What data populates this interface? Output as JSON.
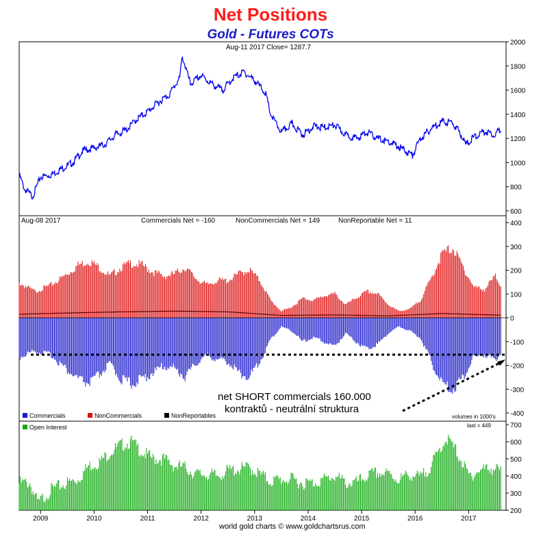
{
  "title": "Net Positions",
  "subtitle": "Gold - Futures COTs",
  "footer": "world gold charts © www.goldchartsrus.com",
  "colors": {
    "gold": "#0000ee",
    "commercials": "#1a1acc",
    "noncommercials": "#dd1111",
    "nonreportables": "#000000",
    "open_interest": "#11aa11"
  },
  "chart_data": [
    {
      "type": "line",
      "name": "price",
      "header": "Aug-11  2017   Close= 1287.7",
      "x_ticks": [
        "2009",
        "2010",
        "2011",
        "2012",
        "2013",
        "2014",
        "2015",
        "2016",
        "2017"
      ],
      "ylim": [
        560,
        2000
      ],
      "y_ticks": [
        600,
        800,
        1000,
        1200,
        1400,
        1600,
        1800,
        2000
      ],
      "series": [
        {
          "x": [
            2008.6,
            2008.7,
            2008.85,
            2009.0,
            2009.2,
            2009.4,
            2009.6,
            2009.8,
            2010.0,
            2010.2,
            2010.4,
            2010.6,
            2010.8,
            2011.0,
            2011.2,
            2011.4,
            2011.6,
            2011.65,
            2011.8,
            2012.0,
            2012.2,
            2012.4,
            2012.6,
            2012.8,
            2013.0,
            2013.2,
            2013.3,
            2013.5,
            2013.7,
            2013.9,
            2014.1,
            2014.3,
            2014.5,
            2014.7,
            2014.9,
            2015.1,
            2015.3,
            2015.5,
            2015.7,
            2015.95,
            2016.1,
            2016.3,
            2016.5,
            2016.7,
            2016.85,
            2016.95,
            2017.1,
            2017.3,
            2017.5,
            2017.6
          ],
          "y": [
            900,
            780,
            720,
            880,
            900,
            950,
            1000,
            1100,
            1120,
            1150,
            1230,
            1270,
            1360,
            1420,
            1500,
            1560,
            1700,
            1880,
            1650,
            1720,
            1650,
            1600,
            1700,
            1750,
            1680,
            1580,
            1400,
            1250,
            1320,
            1230,
            1300,
            1290,
            1310,
            1230,
            1200,
            1250,
            1200,
            1170,
            1130,
            1060,
            1200,
            1280,
            1340,
            1330,
            1240,
            1150,
            1210,
            1260,
            1230,
            1285
          ]
        }
      ]
    },
    {
      "type": "bar",
      "name": "net positions",
      "header_left": "Aug-08  2017",
      "header_values": [
        "Commercials Net = -160",
        "NonCommercials Net = 149",
        "NonReportable Net = 11"
      ],
      "ylim": [
        -400,
        400
      ],
      "y_ticks": [
        -400,
        -300,
        -200,
        -100,
        0,
        100,
        200,
        300,
        400
      ],
      "legend": [
        "Commercials",
        "NonCommercials",
        "NonReportables"
      ],
      "units_note": "volumes in 1000's",
      "series": [
        {
          "name": "Commercials",
          "x": [
            2008.6,
            2008.9,
            2009.2,
            2009.5,
            2009.7,
            2009.9,
            2010.1,
            2010.3,
            2010.5,
            2010.7,
            2010.9,
            2011.1,
            2011.3,
            2011.5,
            2011.7,
            2011.9,
            2012.1,
            2012.3,
            2012.5,
            2012.7,
            2012.9,
            2013.1,
            2013.3,
            2013.5,
            2013.7,
            2013.9,
            2014.1,
            2014.3,
            2014.5,
            2014.7,
            2014.9,
            2015.1,
            2015.3,
            2015.5,
            2015.7,
            2015.9,
            2016.1,
            2016.3,
            2016.5,
            2016.7,
            2016.9,
            2017.1,
            2017.3,
            2017.5,
            2017.6
          ],
          "y": [
            -180,
            -150,
            -170,
            -240,
            -280,
            -300,
            -260,
            -210,
            -280,
            -300,
            -280,
            -250,
            -220,
            -230,
            -270,
            -210,
            -170,
            -190,
            -200,
            -250,
            -270,
            -200,
            -100,
            -40,
            -60,
            -110,
            -90,
            -110,
            -130,
            -70,
            -110,
            -140,
            -120,
            -70,
            -40,
            -60,
            -90,
            -200,
            -300,
            -330,
            -270,
            -180,
            -170,
            -190,
            -160
          ]
        },
        {
          "name": "NonCommercials",
          "x": [
            2008.6,
            2008.9,
            2009.2,
            2009.5,
            2009.7,
            2009.9,
            2010.1,
            2010.3,
            2010.5,
            2010.7,
            2010.9,
            2011.1,
            2011.3,
            2011.5,
            2011.7,
            2011.9,
            2012.1,
            2012.3,
            2012.5,
            2012.7,
            2012.9,
            2013.1,
            2013.3,
            2013.5,
            2013.7,
            2013.9,
            2014.1,
            2014.3,
            2014.5,
            2014.7,
            2014.9,
            2015.1,
            2015.3,
            2015.5,
            2015.7,
            2015.9,
            2016.1,
            2016.3,
            2016.5,
            2016.7,
            2016.9,
            2017.1,
            2017.3,
            2017.5,
            2017.6
          ],
          "y": [
            160,
            120,
            150,
            200,
            240,
            260,
            230,
            190,
            230,
            250,
            240,
            210,
            190,
            200,
            230,
            180,
            150,
            170,
            170,
            200,
            220,
            170,
            80,
            30,
            50,
            90,
            80,
            100,
            110,
            60,
            90,
            120,
            110,
            60,
            30,
            40,
            80,
            180,
            290,
            320,
            230,
            140,
            130,
            190,
            149
          ]
        },
        {
          "name": "NonReportables",
          "x": [
            2008.6,
            2009.5,
            2010.5,
            2011.5,
            2012.5,
            2013.5,
            2014.5,
            2015.5,
            2016.5,
            2017.6
          ],
          "y": [
            15,
            20,
            25,
            28,
            25,
            10,
            12,
            8,
            18,
            11
          ]
        }
      ]
    },
    {
      "type": "bar",
      "name": "open interest",
      "header_right": "last = 449",
      "legend": [
        "Open Interest"
      ],
      "ylim": [
        200,
        720
      ],
      "y_ticks": [
        200,
        300,
        400,
        500,
        600,
        700
      ],
      "series": [
        {
          "name": "Open Interest",
          "x": [
            2008.6,
            2008.8,
            2008.95,
            2009.2,
            2009.5,
            2009.7,
            2009.9,
            2010.1,
            2010.3,
            2010.5,
            2010.7,
            2010.9,
            2011.1,
            2011.3,
            2011.5,
            2011.7,
            2011.9,
            2012.1,
            2012.3,
            2012.5,
            2012.7,
            2012.9,
            2013.1,
            2013.3,
            2013.5,
            2013.7,
            2013.9,
            2014.1,
            2014.3,
            2014.5,
            2014.7,
            2014.9,
            2015.1,
            2015.3,
            2015.5,
            2015.7,
            2015.9,
            2016.1,
            2016.3,
            2016.5,
            2016.6,
            2016.8,
            2017.0,
            2017.2,
            2017.4,
            2017.6
          ],
          "y": [
            380,
            380,
            260,
            340,
            380,
            400,
            480,
            500,
            560,
            600,
            620,
            560,
            520,
            520,
            480,
            470,
            430,
            430,
            420,
            450,
            460,
            470,
            430,
            390,
            400,
            400,
            380,
            380,
            400,
            420,
            380,
            380,
            420,
            440,
            430,
            400,
            430,
            410,
            480,
            600,
            640,
            550,
            420,
            450,
            470,
            449
          ]
        }
      ]
    }
  ],
  "annotation": {
    "line1": "net SHORT commercials 160.000",
    "line2": "kontraktů - neutrální struktura",
    "level": -155
  }
}
